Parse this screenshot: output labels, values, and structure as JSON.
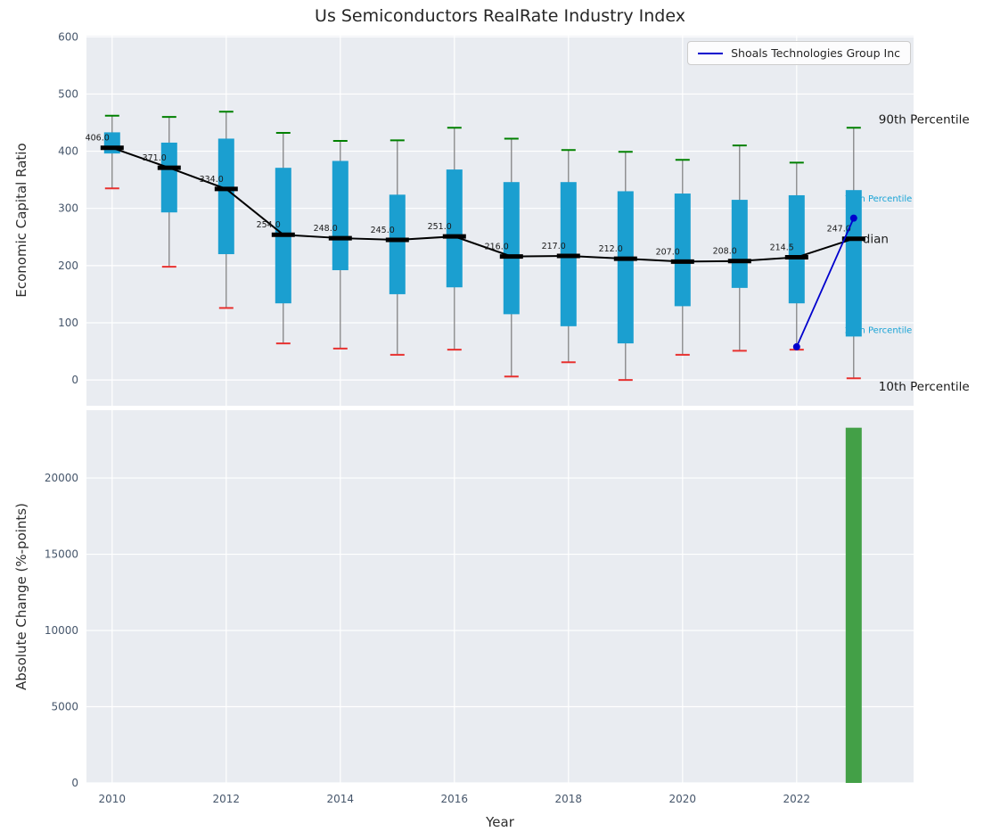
{
  "theme": {
    "panel_background": "#e9ecf1",
    "grid_color": "#ffffff",
    "tick_color": "#46566b",
    "whisker_color": "#7a7a7a",
    "box_color": "#1b9fd0",
    "p90_cap_color": "#008000",
    "p10_cap_color": "#e8312f",
    "median_color": "#000000",
    "text_color": "#1a1a1a"
  },
  "legend": {
    "label": "Shoals Technologies Group Inc",
    "line_color": "#0000cd"
  },
  "chart_data": [
    {
      "type": "boxplot+line",
      "title": "Us Semiconductors RealRate Industry Index",
      "ylabel": "Economic Capital Ratio",
      "ylim": [
        -45,
        602
      ],
      "yticks": [
        0,
        100,
        200,
        300,
        400,
        500,
        600
      ],
      "ytick_labels": [
        "0",
        "100",
        "200",
        "300",
        "400",
        "500",
        "600"
      ],
      "xlim": [
        2009.55,
        2024.05
      ],
      "xticks": [
        2010,
        2012,
        2014,
        2016,
        2018,
        2020,
        2022
      ],
      "xtick_labels": [
        "2010",
        "2012",
        "2014",
        "2016",
        "2018",
        "2020",
        "2022"
      ],
      "grid": true,
      "boxes": [
        {
          "year": 2010,
          "p10": 335,
          "p25": 396,
          "median": 406,
          "p75": 433,
          "p90": 462,
          "label": "406.0"
        },
        {
          "year": 2011,
          "p10": 198,
          "p25": 293,
          "median": 371,
          "p75": 415,
          "p90": 460,
          "label": "371.0"
        },
        {
          "year": 2012,
          "p10": 126,
          "p25": 220,
          "median": 334,
          "p75": 422,
          "p90": 469,
          "label": "334.0"
        },
        {
          "year": 2013,
          "p10": 64,
          "p25": 134,
          "median": 254,
          "p75": 371,
          "p90": 432,
          "label": "254.0"
        },
        {
          "year": 2014,
          "p10": 55,
          "p25": 192,
          "median": 248,
          "p75": 383,
          "p90": 418,
          "label": "248.0"
        },
        {
          "year": 2015,
          "p10": 44,
          "p25": 150,
          "median": 245,
          "p75": 324,
          "p90": 419,
          "label": "245.0"
        },
        {
          "year": 2016,
          "p10": 53,
          "p25": 162,
          "median": 251,
          "p75": 368,
          "p90": 441,
          "label": "251.0"
        },
        {
          "year": 2017,
          "p10": 6,
          "p25": 115,
          "median": 216,
          "p75": 346,
          "p90": 422,
          "label": "216.0"
        },
        {
          "year": 2018,
          "p10": 31,
          "p25": 94,
          "median": 217,
          "p75": 346,
          "p90": 402,
          "label": "217.0"
        },
        {
          "year": 2019,
          "p10": 0,
          "p25": 64,
          "median": 212,
          "p75": 330,
          "p90": 399,
          "label": "212.0"
        },
        {
          "year": 2020,
          "p10": 44,
          "p25": 129,
          "median": 207,
          "p75": 326,
          "p90": 385,
          "label": "207.0"
        },
        {
          "year": 2021,
          "p10": 51,
          "p25": 161,
          "median": 208,
          "p75": 315,
          "p90": 410,
          "label": "208.0"
        },
        {
          "year": 2022,
          "p10": 53,
          "p25": 134,
          "median": 214.5,
          "p75": 323,
          "p90": 380,
          "label": "214.5"
        },
        {
          "year": 2023,
          "p10": 3,
          "p25": 76,
          "median": 247,
          "p75": 332,
          "p90": 441,
          "label": "247.0"
        }
      ],
      "series": [
        {
          "name": "Shoals Technologies Group Inc",
          "color": "#0000cd",
          "x": [
            2022,
            2023
          ],
          "y": [
            58,
            283
          ]
        }
      ],
      "annotations": [
        {
          "text": "90th Percentile",
          "x": 2023,
          "dx": 28,
          "value": 456,
          "color": "#1a1a1a",
          "size": 13.5
        },
        {
          "text": "75th Percentile",
          "x": 2023,
          "dx": -10,
          "value": 318,
          "color": "#18a3d6",
          "size": 10
        },
        {
          "text": "Median",
          "x": 2023,
          "dx": -10,
          "value": 247,
          "color": "#1a1a1a",
          "size": 13.5
        },
        {
          "text": "25th Percentile",
          "x": 2023,
          "dx": -10,
          "value": 88,
          "color": "#18a3d6",
          "size": 10
        },
        {
          "text": "10th Percentile",
          "x": 2023,
          "dx": 28,
          "value": -11,
          "color": "#1a1a1a",
          "size": 13.5
        }
      ],
      "legend_position": "upper right"
    },
    {
      "type": "bar",
      "ylabel": "Absolute Change (%-points)",
      "xlabel": "Year",
      "ylim": [
        0,
        24450
      ],
      "yticks": [
        0,
        5000,
        10000,
        15000,
        20000
      ],
      "ytick_labels": [
        "0",
        "5000",
        "10000",
        "15000",
        "20000"
      ],
      "xlim": [
        2009.55,
        2024.05
      ],
      "xticks": [
        2010,
        2012,
        2014,
        2016,
        2018,
        2020,
        2022
      ],
      "xtick_labels": [
        "2010",
        "2012",
        "2014",
        "2016",
        "2018",
        "2020",
        "2022"
      ],
      "grid": true,
      "bars": [
        {
          "x": 2023,
          "value": 23300,
          "color": "#43a047"
        }
      ]
    }
  ]
}
